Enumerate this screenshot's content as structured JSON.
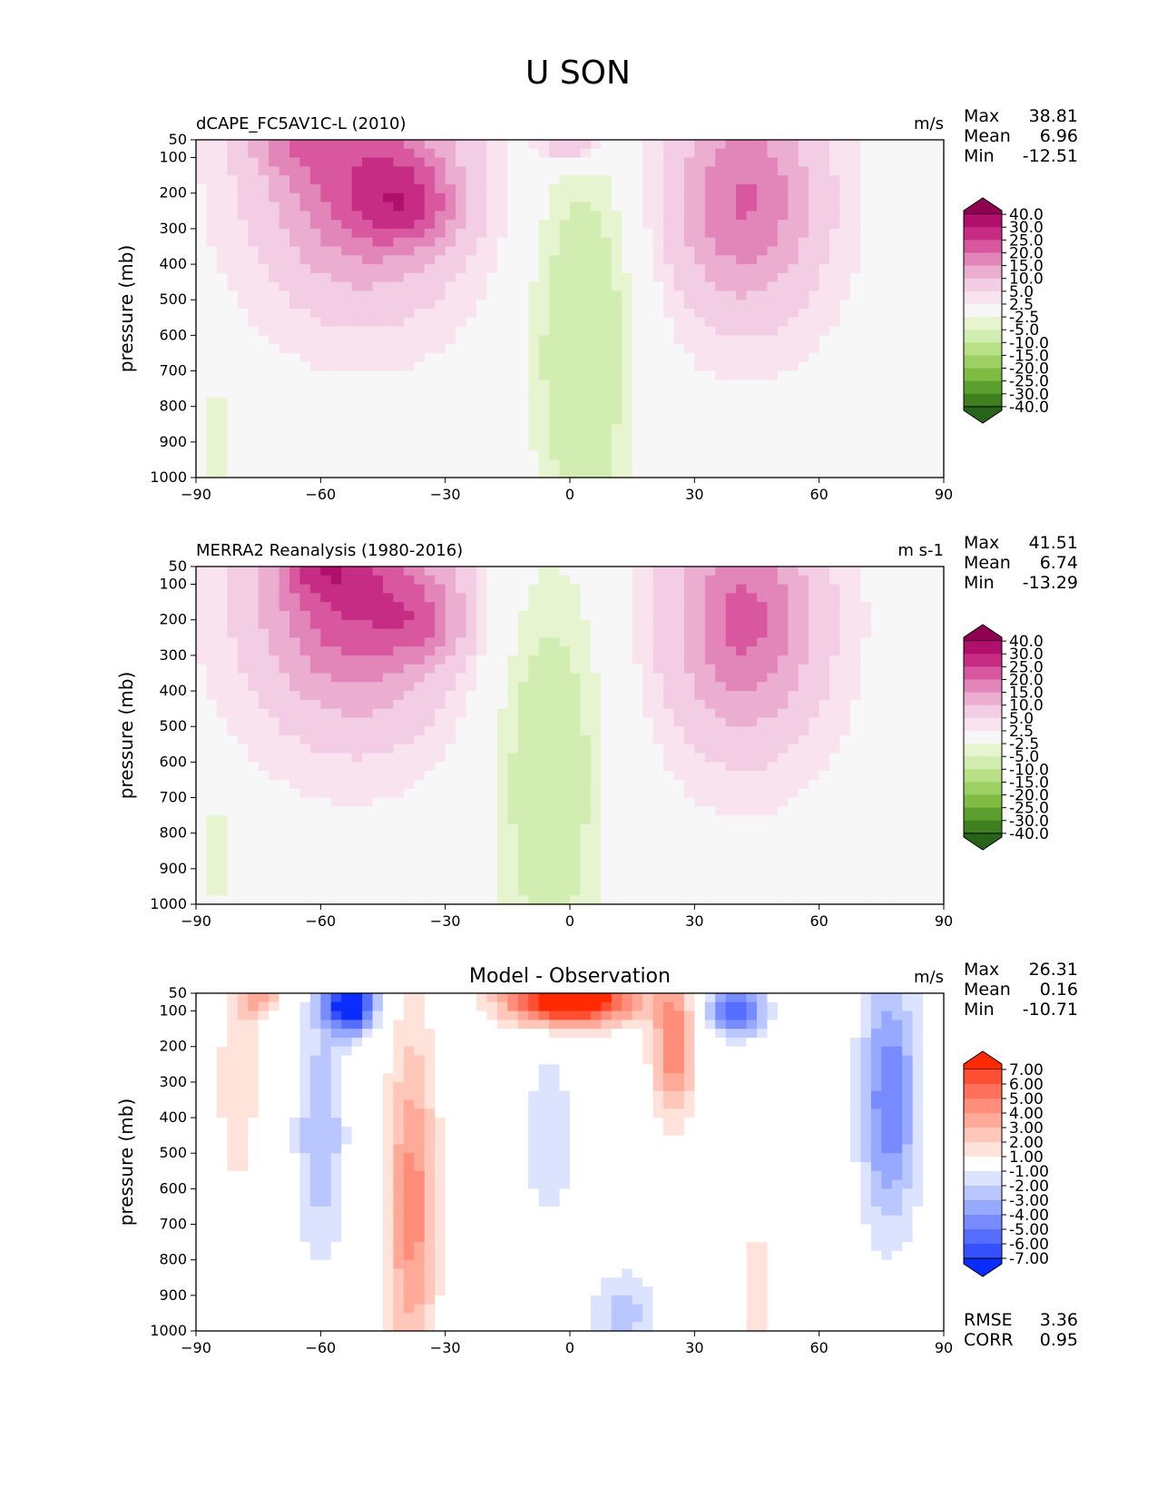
{
  "figure": {
    "title": "U SON"
  },
  "chart_data": [
    {
      "type": "heatmap",
      "title": "dCAPE_FC5AV1C-L (2010)",
      "units": "m/s",
      "ylabel": "pressure (mb)",
      "xlabel": "",
      "xlim": [
        -90,
        90
      ],
      "ylim": [
        1000,
        50
      ],
      "xticks": [
        "−90",
        "−60",
        "−30",
        "0",
        "30",
        "60",
        "90"
      ],
      "xtick_values": [
        -90,
        -60,
        -30,
        0,
        30,
        60,
        90
      ],
      "yticks": [
        "50",
        "100",
        "200",
        "300",
        "400",
        "500",
        "600",
        "700",
        "800",
        "900",
        "1000"
      ],
      "ytick_values": [
        50,
        100,
        200,
        300,
        400,
        500,
        600,
        700,
        800,
        900,
        1000
      ],
      "stats": [
        {
          "label": "Max",
          "value": "38.81"
        },
        {
          "label": "Mean",
          "value": "6.96"
        },
        {
          "label": "Min",
          "value": "-12.51"
        }
      ],
      "colorbar_labels": [
        "40.0",
        "30.0",
        "25.0",
        "20.0",
        "15.0",
        "10.0",
        "5.0",
        "2.5",
        "-2.5",
        "-5.0",
        "-10.0",
        "-15.0",
        "-20.0",
        "-25.0",
        "-30.0",
        "-40.0"
      ],
      "colorbar_colors": [
        "#8e0152",
        "#b0106b",
        "#c72c84",
        "#d8579f",
        "#e286b9",
        "#ebaed0",
        "#f3cde3",
        "#f9e3ef",
        "#f7f7f7",
        "#e6f5d0",
        "#d2edb2",
        "#b8e186",
        "#9cd064",
        "#7fbc41",
        "#5d9f2e",
        "#3f7f1f",
        "#276419"
      ],
      "features": [
        {
          "lat": -50,
          "p": 150,
          "amp": 22,
          "sx": 22,
          "sp": 320
        },
        {
          "lat": -38,
          "p": 230,
          "amp": 12,
          "sx": 12,
          "sp": 120
        },
        {
          "lat": -68,
          "p": 60,
          "amp": 8,
          "sx": 10,
          "sp": 90
        },
        {
          "lat": 42,
          "p": 220,
          "amp": 19,
          "sx": 17,
          "sp": 300
        },
        {
          "lat": 0,
          "p": 50,
          "amp": 12,
          "sx": 7,
          "sp": 70
        },
        {
          "lat": 3,
          "p": 650,
          "amp": -11,
          "sx": 13,
          "sp": 600
        },
        {
          "lat": -85,
          "p": 880,
          "amp": -7,
          "sx": 3,
          "sp": 180
        }
      ],
      "base": 1.5
    },
    {
      "type": "heatmap",
      "title": "MERRA2 Reanalysis (1980-2016)",
      "units": "m s-1",
      "ylabel": "pressure (mb)",
      "xlabel": "",
      "xlim": [
        -90,
        90
      ],
      "ylim": [
        1000,
        50
      ],
      "xticks": [
        "−90",
        "−60",
        "−30",
        "0",
        "30",
        "60",
        "90"
      ],
      "xtick_values": [
        -90,
        -60,
        -30,
        0,
        30,
        60,
        90
      ],
      "yticks": [
        "50",
        "100",
        "200",
        "300",
        "400",
        "500",
        "600",
        "700",
        "800",
        "900",
        "1000"
      ],
      "ytick_values": [
        50,
        100,
        200,
        300,
        400,
        500,
        600,
        700,
        800,
        900,
        1000
      ],
      "stats": [
        {
          "label": "Max",
          "value": "41.51"
        },
        {
          "label": "Mean",
          "value": "6.74"
        },
        {
          "label": "Min",
          "value": "-13.29"
        }
      ],
      "colorbar_labels": [
        "40.0",
        "30.0",
        "25.0",
        "20.0",
        "15.0",
        "10.0",
        "5.0",
        "2.5",
        "-2.5",
        "-5.0",
        "-10.0",
        "-15.0",
        "-20.0",
        "-25.0",
        "-30.0",
        "-40.0"
      ],
      "colorbar_colors": [
        "#8e0152",
        "#b0106b",
        "#c72c84",
        "#d8579f",
        "#e286b9",
        "#ebaed0",
        "#f3cde3",
        "#f9e3ef",
        "#f7f7f7",
        "#e6f5d0",
        "#d2edb2",
        "#b8e186",
        "#9cd064",
        "#7fbc41",
        "#5d9f2e",
        "#3f7f1f",
        "#276419"
      ],
      "features": [
        {
          "lat": -52,
          "p": 130,
          "amp": 24,
          "sx": 22,
          "sp": 330
        },
        {
          "lat": -35,
          "p": 200,
          "amp": 9,
          "sx": 10,
          "sp": 110
        },
        {
          "lat": -60,
          "p": 60,
          "amp": 8,
          "sx": 10,
          "sp": 80
        },
        {
          "lat": 42,
          "p": 200,
          "amp": 20,
          "sx": 17,
          "sp": 320
        },
        {
          "lat": -5,
          "p": 650,
          "amp": -10,
          "sx": 14,
          "sp": 650
        },
        {
          "lat": -85,
          "p": 860,
          "amp": -7,
          "sx": 3,
          "sp": 180
        }
      ],
      "base": 1.5
    },
    {
      "type": "heatmap",
      "title": "Model - Observation",
      "units": "m/s",
      "ylabel": "pressure (mb)",
      "xlabel": "",
      "xlim": [
        -90,
        90
      ],
      "ylim": [
        1000,
        50
      ],
      "xticks": [
        "−90",
        "−60",
        "−30",
        "0",
        "30",
        "60",
        "90"
      ],
      "xtick_values": [
        -90,
        -60,
        -30,
        0,
        30,
        60,
        90
      ],
      "yticks": [
        "50",
        "100",
        "200",
        "300",
        "400",
        "500",
        "600",
        "700",
        "800",
        "900",
        "1000"
      ],
      "ytick_values": [
        50,
        100,
        200,
        300,
        400,
        500,
        600,
        700,
        800,
        900,
        1000
      ],
      "stats": [
        {
          "label": "Max",
          "value": "26.31"
        },
        {
          "label": "Mean",
          "value": "0.16"
        },
        {
          "label": "Min",
          "value": "-10.71"
        }
      ],
      "extra_stats": [
        {
          "label": "RMSE",
          "value": "3.36"
        },
        {
          "label": "CORR",
          "value": "0.95"
        }
      ],
      "colorbar_labels": [
        "7.00",
        "6.00",
        "5.00",
        "4.00",
        "3.00",
        "2.00",
        "1.00",
        "-1.00",
        "-2.00",
        "-3.00",
        "-4.00",
        "-5.00",
        "-6.00",
        "-7.00"
      ],
      "colorbar_colors": [
        "#ff2a00",
        "#ff4f33",
        "#ff705a",
        "#ff8d7a",
        "#ffa998",
        "#ffc7b9",
        "#ffe2da",
        "#ffffff",
        "#dce3ff",
        "#bac6ff",
        "#97a8ff",
        "#778bff",
        "#566eff",
        "#3450ff",
        "#0a2cff"
      ],
      "features": [
        {
          "lat": 0,
          "p": 70,
          "amp": 10,
          "sx": 15,
          "sp": 70
        },
        {
          "lat": 25,
          "p": 200,
          "amp": 5,
          "sx": 5,
          "sp": 200
        },
        {
          "lat": -38,
          "p": 650,
          "amp": 4.5,
          "sx": 6,
          "sp": 500
        },
        {
          "lat": -53,
          "p": 80,
          "amp": -9,
          "sx": 6,
          "sp": 80
        },
        {
          "lat": -60,
          "p": 450,
          "amp": -3,
          "sx": 6,
          "sp": 350
        },
        {
          "lat": 40,
          "p": 100,
          "amp": -6,
          "sx": 7,
          "sp": 70
        },
        {
          "lat": 77,
          "p": 350,
          "amp": -5,
          "sx": 7,
          "sp": 350
        },
        {
          "lat": -80,
          "p": 300,
          "amp": 2,
          "sx": 5,
          "sp": 300
        },
        {
          "lat": -75,
          "p": 60,
          "amp": 3.5,
          "sx": 5,
          "sp": 60
        },
        {
          "lat": -5,
          "p": 450,
          "amp": -2,
          "sx": 6,
          "sp": 250
        },
        {
          "lat": 13,
          "p": 950,
          "amp": -2.5,
          "sx": 8,
          "sp": 120
        },
        {
          "lat": 45,
          "p": 900,
          "amp": 2,
          "sx": 4,
          "sp": 200
        }
      ],
      "base": 0
    }
  ]
}
